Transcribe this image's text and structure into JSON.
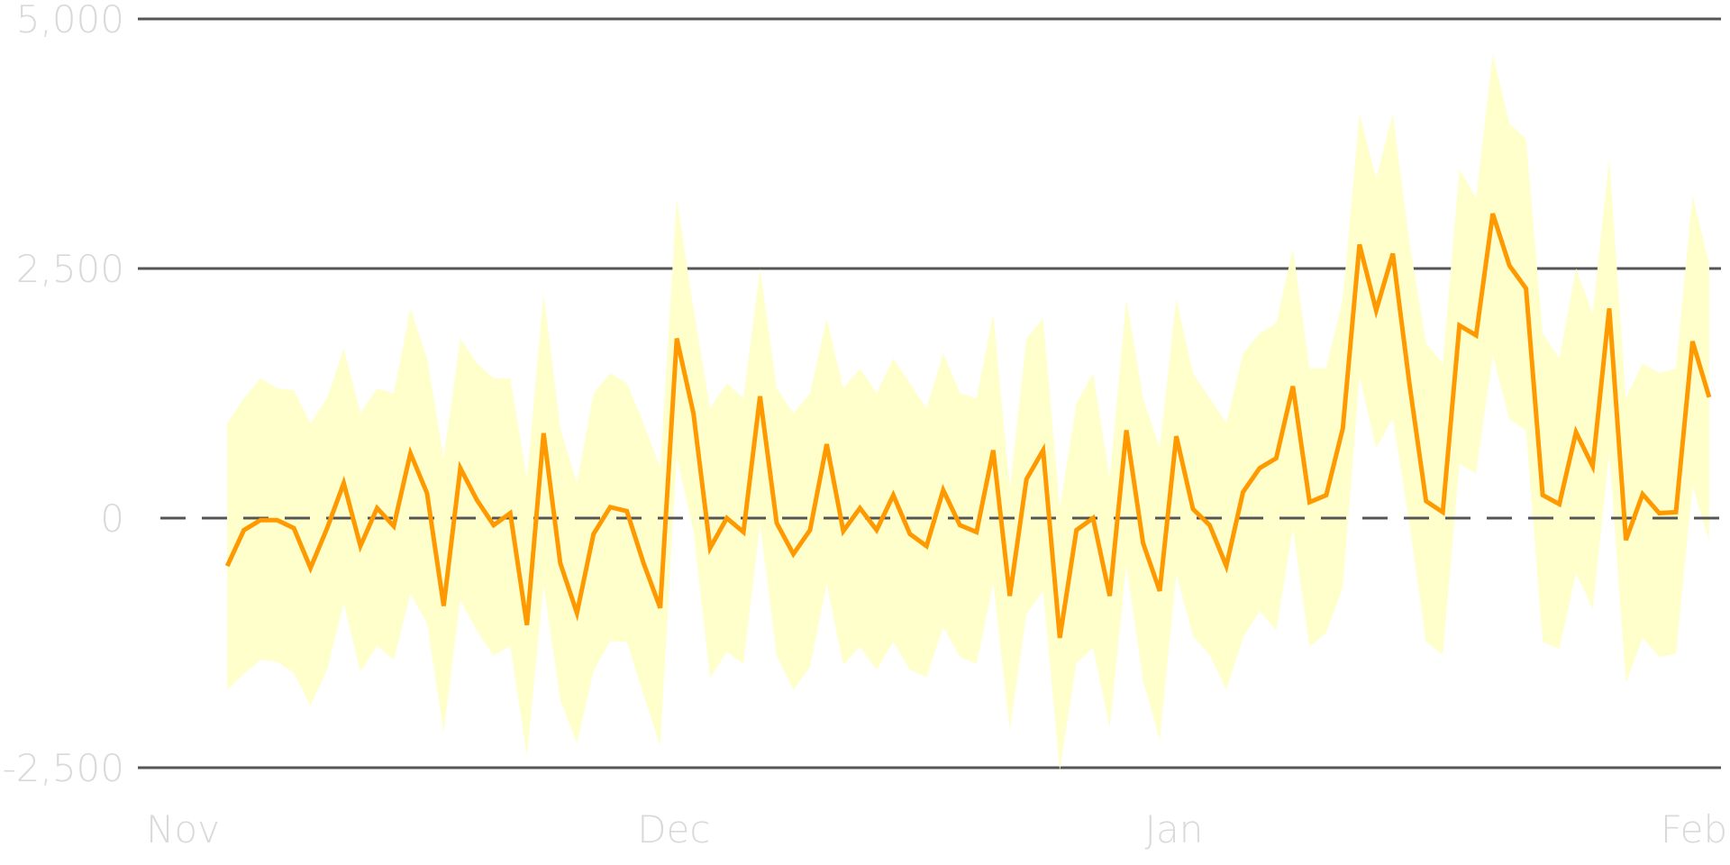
{
  "chart_data": {
    "type": "line",
    "title": "",
    "xlabel": "",
    "ylabel": "",
    "x_tick_labels": [
      "Nov",
      "Dec",
      "Jan",
      "Feb"
    ],
    "y_tick_labels": [
      "5,000",
      "2,500",
      "0",
      "-2,500"
    ],
    "y_ticks": [
      5000,
      2500,
      0,
      -2500
    ],
    "ylim": [
      -2500,
      5000
    ],
    "x_range_days": [
      0,
      92
    ],
    "x_tick_days": [
      0,
      30,
      61,
      92
    ],
    "grid": "horizontal",
    "zero_line": "dashed",
    "colors": {
      "line": "#ff9900",
      "band": "#ffffcc",
      "grid": "#555555",
      "zero_line": "#555555",
      "tick_text": "#d9d9d9"
    },
    "series": [
      {
        "values": [
          -480,
          -120,
          -20,
          -20,
          -100,
          -500,
          -100,
          350,
          -280,
          100,
          -80,
          650,
          250,
          -880,
          500,
          180,
          -70,
          50,
          -1070,
          850,
          -450,
          -950,
          -160,
          110,
          70,
          -450,
          -900,
          1800,
          1050,
          -300,
          0,
          -140,
          1220,
          -50,
          -360,
          -120,
          740,
          -130,
          100,
          -120,
          230,
          -160,
          -280,
          280,
          -70,
          -140,
          680,
          -780,
          390,
          680,
          -1200,
          -120,
          0,
          -780,
          880,
          -250,
          -730,
          820,
          90,
          -70,
          -480,
          260,
          500,
          600,
          1320,
          160,
          230,
          900,
          2740,
          2080,
          2650,
          1340,
          170,
          60,
          1930,
          1830,
          3050,
          2530,
          2300,
          230,
          140,
          860,
          520,
          2100,
          -220,
          240,
          50,
          60,
          1770,
          1210
        ]
      }
    ],
    "band": {
      "upper": [
        950,
        1200,
        1400,
        1300,
        1280,
        950,
        1200,
        1700,
        1050,
        1300,
        1250,
        2100,
        1600,
        600,
        1800,
        1550,
        1400,
        1400,
        400,
        2250,
        900,
        350,
        1250,
        1450,
        1350,
        950,
        500,
        3200,
        2100,
        1100,
        1350,
        1200,
        2500,
        1300,
        1050,
        1250,
        2000,
        1300,
        1500,
        1250,
        1600,
        1350,
        1100,
        1650,
        1250,
        1200,
        2050,
        300,
        1800,
        2000,
        100,
        1150,
        1450,
        400,
        2200,
        1200,
        700,
        2200,
        1450,
        1200,
        950,
        1650,
        1850,
        1950,
        2700,
        1500,
        1500,
        2200,
        4050,
        3400,
        4050,
        2750,
        1750,
        1550,
        3500,
        3200,
        4650,
        3950,
        3800,
        1850,
        1600,
        2500,
        2050,
        3600,
        1200,
        1550,
        1450,
        1500,
        3230,
        2550
      ],
      "lower": [
        -1720,
        -1560,
        -1420,
        -1440,
        -1550,
        -1880,
        -1520,
        -850,
        -1540,
        -1280,
        -1420,
        -760,
        -1050,
        -2150,
        -820,
        -1130,
        -1380,
        -1280,
        -2380,
        -670,
        -1820,
        -2260,
        -1530,
        -1230,
        -1240,
        -1770,
        -2280,
        620,
        -130,
        -1600,
        -1340,
        -1460,
        -60,
        -1380,
        -1720,
        -1490,
        -660,
        -1470,
        -1290,
        -1520,
        -1240,
        -1520,
        -1590,
        -1090,
        -1390,
        -1460,
        -650,
        -2120,
        -960,
        -730,
        -2530,
        -1450,
        -1300,
        -2100,
        -470,
        -1630,
        -2220,
        -560,
        -1180,
        -1370,
        -1720,
        -1200,
        -930,
        -1120,
        -110,
        -1290,
        -1150,
        -690,
        1420,
        700,
        1000,
        -60,
        -1240,
        -1370,
        540,
        450,
        1630,
        990,
        880,
        -1240,
        -1310,
        -550,
        -910,
        650,
        -1650,
        -1200,
        -1390,
        -1360,
        320,
        -230
      ]
    }
  }
}
